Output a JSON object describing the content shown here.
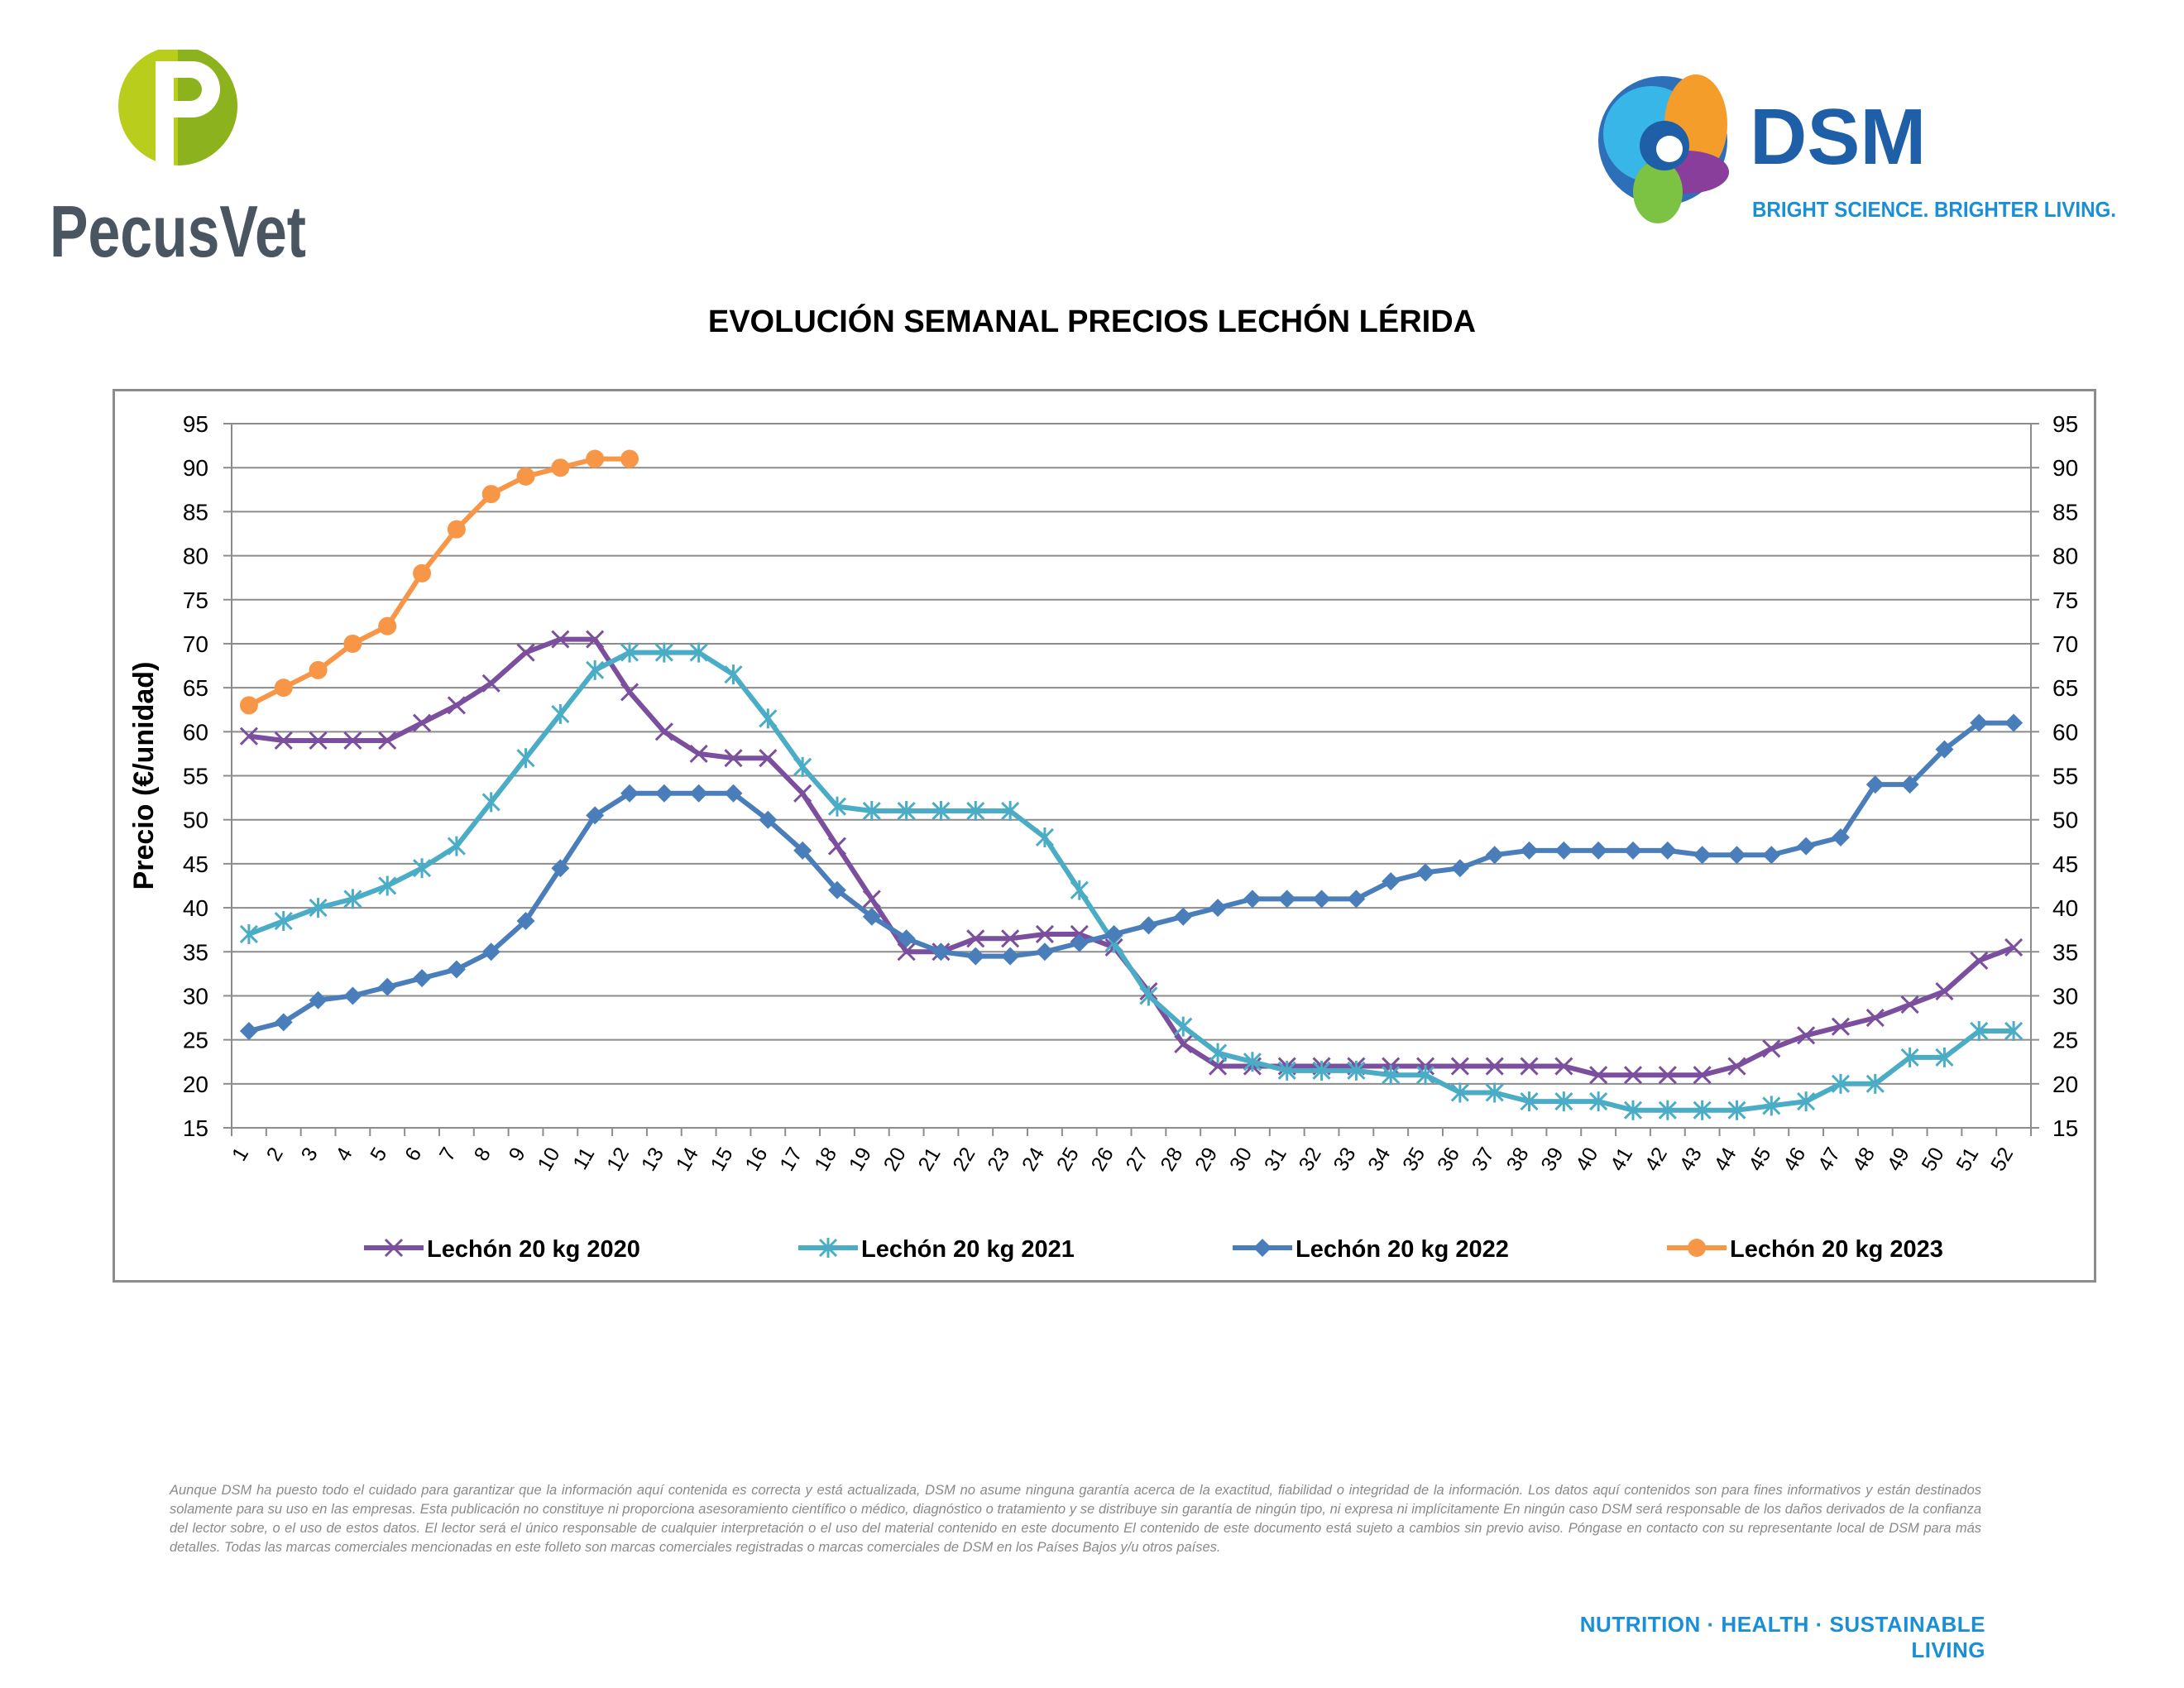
{
  "header": {
    "left_logo": {
      "name": "PecusVet",
      "icon": "pecusvet-p-logo",
      "text_color": "#4a5562",
      "accent_color": "#b9cd1c"
    },
    "right_logo": {
      "name": "DSM",
      "slogan": "BRIGHT SCIENCE. BRIGHTER LIVING.",
      "icon": "dsm-swirl-logo",
      "text_color": "#1f5fa8",
      "slogan_color": "#1a8fd6"
    }
  },
  "chart_data": {
    "type": "line",
    "title": "EVOLUCIÓN SEMANAL PRECIOS LECHÓN LÉRIDA",
    "ylabel": "Precio (€/unidad)",
    "xlabel": "",
    "ylim": [
      15,
      95
    ],
    "y_ticks": [
      15,
      20,
      25,
      30,
      35,
      40,
      45,
      50,
      55,
      60,
      65,
      70,
      75,
      80,
      85,
      90,
      95
    ],
    "secondary_y_axis": true,
    "grid": true,
    "legend_position": "bottom",
    "categories": [
      "1",
      "2",
      "3",
      "4",
      "5",
      "6",
      "7",
      "8",
      "9",
      "10",
      "11",
      "12",
      "13",
      "14",
      "15",
      "16",
      "17",
      "18",
      "19",
      "20",
      "21",
      "22",
      "23",
      "24",
      "25",
      "26",
      "27",
      "28",
      "29",
      "30",
      "31",
      "32",
      "33",
      "34",
      "35",
      "36",
      "37",
      "38",
      "39",
      "40",
      "41",
      "42",
      "43",
      "44",
      "45",
      "46",
      "47",
      "48",
      "49",
      "50",
      "51",
      "52"
    ],
    "series": [
      {
        "name": "Lechón 20 kg 2020",
        "color": "#7b4f9d",
        "marker": "x",
        "values": [
          59.5,
          59,
          59,
          59,
          59,
          61,
          63,
          65.5,
          69,
          70.5,
          70.5,
          64.5,
          60,
          57.5,
          57,
          57,
          53,
          47,
          41,
          35,
          35,
          36.5,
          36.5,
          37,
          37,
          35.5,
          30.5,
          24.5,
          22,
          22,
          22,
          22,
          22,
          22,
          22,
          22,
          22,
          22,
          22,
          21,
          21,
          21,
          21,
          22,
          24,
          25.5,
          26.5,
          27.5,
          29,
          30.5,
          34,
          35.5
        ]
      },
      {
        "name": "Lechón 20 kg 2021",
        "color": "#4bacc6",
        "marker": "star",
        "values": [
          37,
          38.5,
          40,
          41,
          42.5,
          44.5,
          47,
          52,
          57,
          62,
          67,
          69,
          69,
          69,
          66.5,
          61.5,
          56,
          51.5,
          51,
          51,
          51,
          51,
          51,
          48,
          42,
          36,
          30,
          26.5,
          23.5,
          22.5,
          21.5,
          21.5,
          21.5,
          21,
          21,
          19,
          19,
          18,
          18,
          18,
          17,
          17,
          17,
          17,
          17.5,
          18,
          20,
          20,
          23,
          23,
          26,
          26
        ]
      },
      {
        "name": "Lechón 20 kg 2022",
        "color": "#4a7ebb",
        "marker": "diamond",
        "values": [
          26,
          27,
          29.5,
          30,
          31,
          32,
          33,
          35,
          38.5,
          44.5,
          50.5,
          53,
          53,
          53,
          53,
          50,
          46.5,
          42,
          39,
          36.5,
          35,
          34.5,
          34.5,
          35,
          36,
          37,
          38,
          39,
          40,
          41,
          41,
          41,
          41,
          43,
          44,
          44.5,
          46,
          46.5,
          46.5,
          46.5,
          46.5,
          46.5,
          46,
          46,
          46,
          47,
          48,
          54,
          54,
          58,
          61,
          61
        ]
      },
      {
        "name": "Lechón 20 kg 2023",
        "color": "#f79646",
        "marker": "circle",
        "values": [
          63,
          65,
          67,
          70,
          72,
          78,
          83,
          87,
          89,
          90,
          91,
          91,
          null,
          null,
          null,
          null,
          null,
          null,
          null,
          null,
          null,
          null,
          null,
          null,
          null,
          null,
          null,
          null,
          null,
          null,
          null,
          null,
          null,
          null,
          null,
          null,
          null,
          null,
          null,
          null,
          null,
          null,
          null,
          null,
          null,
          null,
          null,
          null,
          null,
          null,
          null,
          null
        ]
      }
    ]
  },
  "footer": {
    "disclaimer": "Aunque DSM ha puesto todo el cuidado para garantizar que la información aquí contenida es correcta y está actualizada, DSM no asume ninguna garantía acerca de la exactitud, fiabilidad o integridad de la información. Los datos aquí contenidos son para fines informativos y están destinados solamente para su uso en las empresas. Esta publicación no constituye ni proporciona asesoramiento científico o médico, diagnóstico o tratamiento y se distribuye sin garantía de ningún tipo, ni expresa ni implícitamente En ningún caso DSM será responsable de los daños derivados de la confianza del lector sobre, o el uso de estos datos. El lector será el único responsable de cualquier interpretación o el uso del material contenido en este documento El contenido de este documento está sujeto a cambios sin previo aviso. Póngase en contacto con su representante local de DSM para más detalles. Todas las marcas comerciales mencionadas en este folleto son marcas comerciales registradas o marcas comerciales de DSM en los Países Bajos y/u otros países.",
    "tagline": "NUTRITION · HEALTH · SUSTAINABLE LIVING"
  }
}
